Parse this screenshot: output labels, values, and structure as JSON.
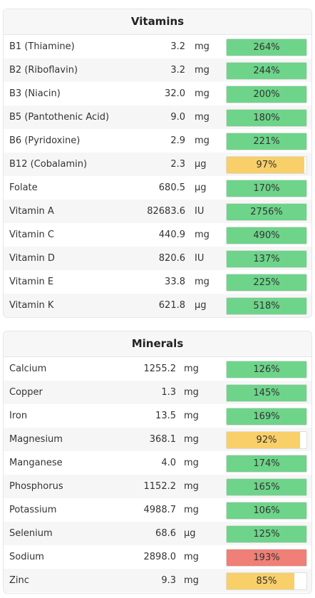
{
  "vitamins": {
    "title": "Vitamins",
    "rows": [
      {
        "name": "B1 (Thiamine)",
        "amount": "3.2",
        "unit": "mg",
        "percent": 264,
        "percent_label": "264%",
        "status": "green"
      },
      {
        "name": "B2 (Riboflavin)",
        "amount": "3.2",
        "unit": "mg",
        "percent": 244,
        "percent_label": "244%",
        "status": "green"
      },
      {
        "name": "B3 (Niacin)",
        "amount": "32.0",
        "unit": "mg",
        "percent": 200,
        "percent_label": "200%",
        "status": "green"
      },
      {
        "name": "B5 (Pantothenic Acid)",
        "amount": "9.0",
        "unit": "mg",
        "percent": 180,
        "percent_label": "180%",
        "status": "green"
      },
      {
        "name": "B6 (Pyridoxine)",
        "amount": "2.9",
        "unit": "mg",
        "percent": 221,
        "percent_label": "221%",
        "status": "green"
      },
      {
        "name": "B12 (Cobalamin)",
        "amount": "2.3",
        "unit": "µg",
        "percent": 97,
        "percent_label": "97%",
        "status": "yellow"
      },
      {
        "name": "Folate",
        "amount": "680.5",
        "unit": "µg",
        "percent": 170,
        "percent_label": "170%",
        "status": "green"
      },
      {
        "name": "Vitamin A",
        "amount": "82683.6",
        "unit": "IU",
        "percent": 2756,
        "percent_label": "2756%",
        "status": "green"
      },
      {
        "name": "Vitamin C",
        "amount": "440.9",
        "unit": "mg",
        "percent": 490,
        "percent_label": "490%",
        "status": "green"
      },
      {
        "name": "Vitamin D",
        "amount": "820.6",
        "unit": "IU",
        "percent": 137,
        "percent_label": "137%",
        "status": "green"
      },
      {
        "name": "Vitamin E",
        "amount": "33.8",
        "unit": "mg",
        "percent": 225,
        "percent_label": "225%",
        "status": "green"
      },
      {
        "name": "Vitamin K",
        "amount": "621.8",
        "unit": "µg",
        "percent": 518,
        "percent_label": "518%",
        "status": "green"
      }
    ]
  },
  "minerals": {
    "title": "Minerals",
    "rows": [
      {
        "name": "Calcium",
        "amount": "1255.2",
        "unit": "mg",
        "percent": 126,
        "percent_label": "126%",
        "status": "green"
      },
      {
        "name": "Copper",
        "amount": "1.3",
        "unit": "mg",
        "percent": 145,
        "percent_label": "145%",
        "status": "green"
      },
      {
        "name": "Iron",
        "amount": "13.5",
        "unit": "mg",
        "percent": 169,
        "percent_label": "169%",
        "status": "green"
      },
      {
        "name": "Magnesium",
        "amount": "368.1",
        "unit": "mg",
        "percent": 92,
        "percent_label": "92%",
        "status": "yellow"
      },
      {
        "name": "Manganese",
        "amount": "4.0",
        "unit": "mg",
        "percent": 174,
        "percent_label": "174%",
        "status": "green"
      },
      {
        "name": "Phosphorus",
        "amount": "1152.2",
        "unit": "mg",
        "percent": 165,
        "percent_label": "165%",
        "status": "green"
      },
      {
        "name": "Potassium",
        "amount": "4988.7",
        "unit": "mg",
        "percent": 106,
        "percent_label": "106%",
        "status": "green"
      },
      {
        "name": "Selenium",
        "amount": "68.6",
        "unit": "µg",
        "percent": 125,
        "percent_label": "125%",
        "status": "green"
      },
      {
        "name": "Sodium",
        "amount": "2898.0",
        "unit": "mg",
        "percent": 193,
        "percent_label": "193%",
        "status": "red"
      },
      {
        "name": "Zinc",
        "amount": "9.3",
        "unit": "mg",
        "percent": 85,
        "percent_label": "85%",
        "status": "yellow"
      }
    ]
  },
  "colors": {
    "green": "#6dd48a",
    "yellow": "#f8cf68",
    "red": "#ef7f77"
  }
}
